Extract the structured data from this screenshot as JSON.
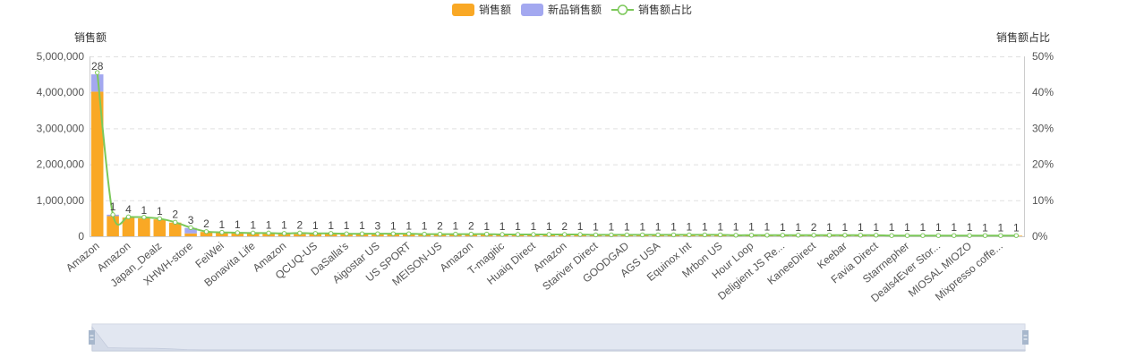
{
  "legend": {
    "sales_label": "销售额",
    "new_sales_label": "新品销售额",
    "ratio_label": "销售额占比"
  },
  "colors": {
    "sales": "#f9a825",
    "new_sales": "#a3a8f0",
    "ratio": "#7cc85a",
    "grid": "#e0e0e0",
    "axis": "#cccccc",
    "zoom_fill": "#d9dfec",
    "zoom_handle": "#a7b7cc"
  },
  "chart_data": {
    "type": "bar",
    "yaxis_left": {
      "name": "销售额",
      "min": 0,
      "max": 5000000,
      "ticks": [
        "0",
        "1,000,000",
        "2,000,000",
        "3,000,000",
        "4,000,000",
        "5,000,000"
      ]
    },
    "yaxis_right": {
      "name": "销售额占比",
      "min": 0,
      "max": 50,
      "ticks": [
        "0%",
        "10%",
        "20%",
        "30%",
        "40%",
        "50%"
      ]
    },
    "shown_x_labels": [
      "Amazon",
      "Amazon",
      "Japan_Dealz",
      "XHWH-store",
      "FeiWei",
      "Bonavita Life",
      "Amazon",
      "QCUQ-US",
      "DaSalla's",
      "Aigostar US",
      "US SPORT",
      "MEISON-US",
      "Amazon",
      "T-magitic",
      "Huaiq Direct",
      "Amazon",
      "Stariver Direct",
      "GOODGAD",
      "AGS USA",
      "Equinox Int",
      "Mrbon US",
      "Hour Loop",
      "Deligient JS Re...",
      "KaneeDirect",
      "Keebar",
      "Favia Direct",
      "Starrnepher",
      "Deals4Ever Stor...",
      "MIOSAL MIOZO",
      "Mixpresso coffe..."
    ],
    "data_labels": [
      "28",
      "1",
      "4",
      "1",
      "1",
      "2",
      "3",
      "2",
      "1",
      "1",
      "1",
      "1",
      "1",
      "2",
      "1",
      "1",
      "1",
      "1",
      "3",
      "1",
      "1",
      "1",
      "2",
      "1",
      "2",
      "1",
      "1",
      "1",
      "1",
      "1",
      "2",
      "1",
      "1",
      "1",
      "1",
      "1",
      "1",
      "1",
      "1",
      "1",
      "1",
      "1",
      "1",
      "1",
      "1",
      "1",
      "2",
      "1",
      "1",
      "1",
      "1",
      "1",
      "1",
      "1",
      "1",
      "1",
      "1",
      "1",
      "1",
      "1"
    ],
    "series": [
      {
        "name": "销售额",
        "type": "bar",
        "stack": "sales",
        "values": [
          4020000,
          560000,
          520000,
          500000,
          470000,
          380000,
          80000,
          120000,
          100000,
          95000,
          90000,
          85000,
          82000,
          60000,
          78000,
          75000,
          72000,
          70000,
          68000,
          66000,
          64000,
          62000,
          60000,
          58000,
          56000,
          54000,
          52000,
          50000,
          48000,
          46000,
          45000,
          44000,
          43000,
          42000,
          41000,
          40000,
          39000,
          38000,
          37000,
          36000,
          35000,
          34000,
          33000,
          32000,
          31000,
          30000,
          29000,
          28000,
          27000,
          26000,
          25000,
          24000,
          23000,
          22000,
          21000,
          20000,
          19000,
          18000,
          17000,
          16000
        ]
      },
      {
        "name": "新品销售额",
        "type": "bar",
        "stack": "sales",
        "values": [
          480000,
          40000,
          0,
          0,
          0,
          0,
          150000,
          0,
          0,
          0,
          0,
          0,
          0,
          30000,
          0,
          0,
          0,
          0,
          0,
          0,
          0,
          0,
          0,
          0,
          0,
          0,
          0,
          0,
          0,
          0,
          0,
          0,
          0,
          0,
          0,
          0,
          0,
          0,
          0,
          0,
          0,
          0,
          0,
          0,
          0,
          0,
          0,
          0,
          0,
          0,
          0,
          0,
          0,
          0,
          0,
          0,
          0,
          0,
          0,
          0
        ]
      },
      {
        "name": "销售额占比",
        "type": "line",
        "yAxis": "right",
        "values": [
          45.5,
          6.0,
          5.4,
          5.3,
          4.9,
          3.9,
          2.4,
          1.3,
          1.1,
          1.0,
          0.9,
          0.9,
          0.8,
          0.9,
          0.8,
          0.8,
          0.7,
          0.7,
          0.7,
          0.7,
          0.7,
          0.6,
          0.6,
          0.6,
          0.6,
          0.6,
          0.5,
          0.5,
          0.5,
          0.5,
          0.5,
          0.5,
          0.4,
          0.4,
          0.4,
          0.4,
          0.4,
          0.4,
          0.4,
          0.4,
          0.4,
          0.3,
          0.3,
          0.3,
          0.3,
          0.3,
          0.3,
          0.3,
          0.3,
          0.3,
          0.3,
          0.2,
          0.2,
          0.2,
          0.2,
          0.2,
          0.2,
          0.2,
          0.2,
          0.2
        ]
      }
    ],
    "grid": true,
    "legend_position": "top-center",
    "datazoom": {
      "start": 0,
      "end": 100
    }
  }
}
